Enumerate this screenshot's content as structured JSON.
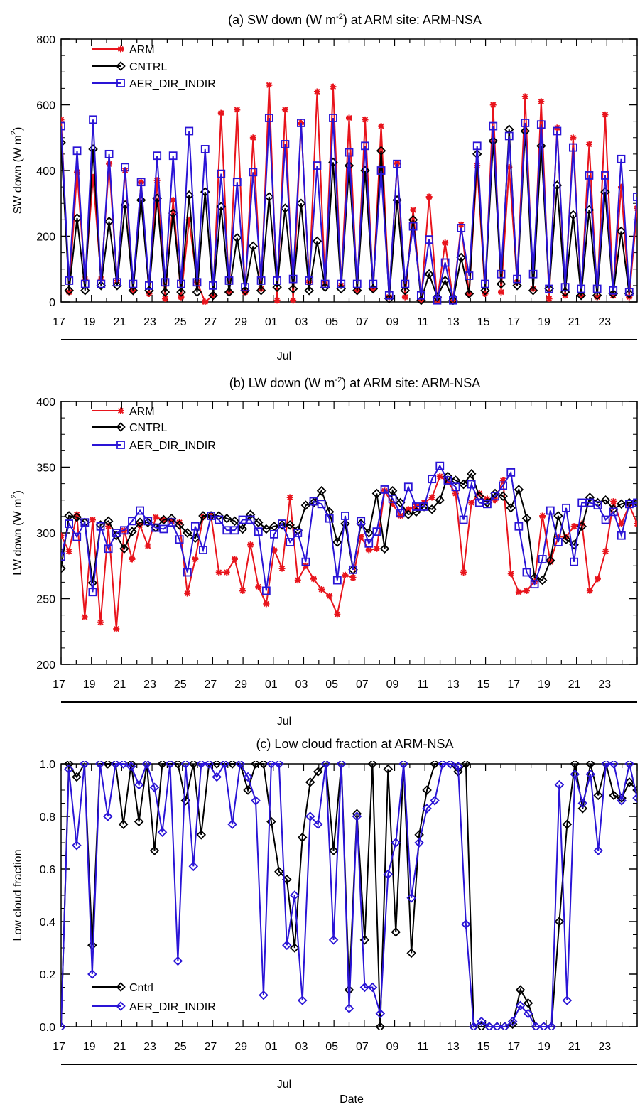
{
  "figure": {
    "month_label": "Jul",
    "date_label": "Date",
    "x_tick_labels": [
      "17",
      "19",
      "21",
      "23",
      "25",
      "27",
      "29",
      "01",
      "03",
      "05",
      "07",
      "09",
      "11",
      "13",
      "15",
      "17",
      "19",
      "21",
      "23"
    ]
  },
  "colors": {
    "ARM": "#e8141c",
    "CNTRL": "#000000",
    "AER": "#2a14d6"
  },
  "chart_data": [
    {
      "type": "line",
      "panel": "a",
      "title_parts": [
        "(a) SW down (W m",
        "-2",
        ") at ARM site: ARM-NSA"
      ],
      "ylabel_parts": [
        "SW down (W m",
        "2",
        ")"
      ],
      "ylim": [
        0,
        800
      ],
      "yticks": [
        0,
        200,
        400,
        600,
        800
      ],
      "xlim": [
        0,
        76
      ],
      "legend": "top-left",
      "series": [
        {
          "name": "ARM",
          "marker": "star",
          "color_key": "ARM",
          "values": [
            555,
            30,
            395,
            70,
            380,
            70,
            420,
            65,
            400,
            35,
            365,
            25,
            370,
            10,
            310,
            15,
            250,
            60,
            0,
            20,
            575,
            30,
            585,
            30,
            500,
            40,
            660,
            5,
            585,
            5,
            545,
            60,
            640,
            55,
            655,
            50,
            560,
            35,
            555,
            40,
            535,
            15,
            420,
            15,
            280,
            5,
            320,
            5,
            180,
            5,
            235,
            25,
            415,
            25,
            600,
            30,
            410,
            60,
            625,
            40,
            610,
            10,
            530,
            20,
            500,
            20,
            480,
            15,
            570,
            20,
            350,
            15,
            285
          ]
        },
        {
          "name": "CNTRL",
          "marker": "diamond",
          "color_key": "CNTRL",
          "values": [
            485,
            35,
            255,
            35,
            465,
            50,
            245,
            50,
            295,
            35,
            310,
            35,
            315,
            30,
            270,
            30,
            325,
            30,
            335,
            20,
            290,
            30,
            195,
            35,
            170,
            35,
            320,
            45,
            285,
            40,
            300,
            35,
            185,
            45,
            425,
            40,
            415,
            35,
            400,
            40,
            460,
            10,
            310,
            35,
            250,
            5,
            85,
            15,
            65,
            5,
            135,
            25,
            450,
            35,
            490,
            55,
            525,
            50,
            520,
            35,
            475,
            40,
            355,
            30,
            265,
            20,
            280,
            20,
            335,
            25,
            215,
            25
          ]
        },
        {
          "name": "AER_DIR_INDIR",
          "marker": "square",
          "color_key": "AER",
          "values": [
            535,
            65,
            460,
            55,
            555,
            55,
            450,
            60,
            410,
            55,
            365,
            50,
            445,
            60,
            445,
            55,
            520,
            60,
            465,
            50,
            390,
            65,
            365,
            45,
            395,
            65,
            560,
            65,
            480,
            70,
            545,
            65,
            415,
            55,
            560,
            55,
            455,
            55,
            475,
            55,
            400,
            20,
            420,
            55,
            230,
            20,
            190,
            5,
            120,
            5,
            225,
            80,
            475,
            55,
            535,
            85,
            505,
            70,
            545,
            85,
            540,
            40,
            520,
            45,
            470,
            40,
            385,
            40,
            385,
            35,
            435,
            30,
            320,
            25
          ]
        }
      ]
    },
    {
      "type": "line",
      "panel": "b",
      "title_parts": [
        "(b) LW down (W m",
        "-2",
        ") at ARM site: ARM-NSA"
      ],
      "ylabel_parts": [
        "LW down (W m",
        "2",
        ")"
      ],
      "ylim": [
        200,
        400
      ],
      "yticks": [
        200,
        250,
        300,
        350,
        400
      ],
      "xlim": [
        0,
        76
      ],
      "legend": "top-left",
      "series": [
        {
          "name": "ARM",
          "marker": "star",
          "color_key": "ARM",
          "values": [
            298,
            286,
            314,
            236,
            310,
            232,
            305,
            227,
            302,
            280,
            306,
            290,
            312,
            310,
            309,
            308,
            254,
            280,
            312,
            313,
            270,
            270,
            280,
            256,
            291,
            259,
            246,
            287,
            273,
            327,
            264,
            275,
            265,
            257,
            252,
            238,
            268,
            266,
            297,
            287,
            288,
            332,
            322,
            313,
            318,
            320,
            323,
            327,
            343,
            339,
            330,
            270,
            323,
            330,
            326,
            325,
            340,
            269,
            255,
            256,
            263,
            313,
            278,
            297,
            297,
            305,
            307,
            256,
            265,
            286,
            324,
            307,
            321,
            307
          ]
        },
        {
          "name": "CNTRL",
          "marker": "diamond",
          "color_key": "CNTRL",
          "values": [
            273,
            313,
            312,
            308,
            262,
            306,
            309,
            298,
            288,
            301,
            308,
            308,
            304,
            310,
            311,
            306,
            300,
            296,
            313,
            313,
            313,
            311,
            309,
            303,
            314,
            308,
            303,
            305,
            306,
            306,
            302,
            321,
            323,
            332,
            316,
            293,
            307,
            272,
            307,
            300,
            330,
            288,
            332,
            323,
            314,
            316,
            320,
            318,
            325,
            343,
            340,
            337,
            345,
            328,
            323,
            330,
            328,
            319,
            333,
            311,
            266,
            264,
            279,
            313,
            295,
            291,
            305,
            327,
            323,
            325,
            318,
            322,
            323,
            323
          ]
        },
        {
          "name": "AER_DIR_INDIR",
          "marker": "square",
          "color_key": "AER",
          "values": [
            282,
            307,
            297,
            308,
            255,
            305,
            288,
            300,
            302,
            309,
            317,
            309,
            304,
            303,
            308,
            295,
            270,
            305,
            287,
            313,
            310,
            302,
            302,
            310,
            310,
            301,
            256,
            299,
            307,
            293,
            300,
            278,
            324,
            322,
            311,
            264,
            313,
            272,
            309,
            292,
            301,
            333,
            326,
            315,
            335,
            320,
            320,
            341,
            351,
            340,
            335,
            310,
            337,
            323,
            322,
            328,
            336,
            346,
            305,
            270,
            261,
            280,
            317,
            293,
            319,
            278,
            323,
            323,
            321,
            310,
            316,
            298,
            322,
            323
          ]
        }
      ]
    },
    {
      "type": "line",
      "panel": "c",
      "title_parts": [
        "(c) Low cloud fraction at ARM-NSA",
        "",
        ""
      ],
      "ylabel_parts": [
        "Low cloud fraction",
        "",
        ""
      ],
      "ylim": [
        0,
        1
      ],
      "yticks": [
        0.0,
        0.2,
        0.4,
        0.6,
        0.8,
        1.0
      ],
      "xlim": [
        0,
        76
      ],
      "legend": "bottom-left",
      "series": [
        {
          "name": "Cntrl",
          "marker": "diamond",
          "color_key": "CNTRL",
          "values": [
            0.0,
            1.0,
            0.95,
            1.0,
            0.31,
            1.0,
            1.0,
            1.0,
            0.77,
            1.0,
            0.78,
            1.0,
            0.67,
            1.0,
            1.0,
            1.0,
            0.86,
            1.0,
            0.73,
            1.0,
            1.0,
            1.0,
            1.0,
            1.0,
            0.9,
            1.0,
            1.0,
            0.78,
            0.59,
            0.56,
            0.3,
            0.72,
            0.93,
            0.97,
            1.0,
            0.67,
            1.0,
            0.14,
            0.81,
            0.33,
            1.0,
            0.0,
            0.98,
            0.36,
            1.0,
            0.28,
            0.73,
            0.9,
            1.0,
            1.0,
            1.0,
            0.97,
            1.0,
            0.0,
            0.0,
            0.0,
            0.0,
            0.0,
            0.01,
            0.14,
            0.09,
            0.0,
            0.0,
            0.0,
            0.4,
            0.77,
            1.0,
            0.83,
            1.0,
            0.88,
            1.0,
            0.88,
            0.87,
            0.93,
            0.9
          ]
        },
        {
          "name": "AER_DIR_INDIR",
          "marker": "diamond",
          "color_key": "AER",
          "values": [
            0.0,
            0.98,
            0.69,
            1.0,
            0.2,
            1.0,
            0.8,
            1.0,
            1.0,
            0.99,
            0.92,
            1.0,
            0.91,
            0.74,
            1.0,
            0.25,
            1.0,
            0.61,
            1.0,
            1.0,
            0.95,
            1.0,
            0.77,
            1.0,
            0.95,
            0.86,
            0.12,
            1.0,
            1.0,
            0.31,
            0.5,
            0.1,
            0.8,
            0.77,
            1.0,
            0.33,
            1.0,
            0.07,
            0.8,
            0.15,
            0.15,
            0.05,
            0.58,
            0.7,
            1.0,
            0.49,
            0.7,
            0.83,
            0.86,
            1.0,
            1.0,
            0.99,
            0.39,
            0.0,
            0.02,
            0.0,
            0.0,
            0.0,
            0.02,
            0.08,
            0.05,
            0.0,
            0.0,
            0.0,
            0.92,
            0.1,
            0.96,
            0.85,
            0.96,
            0.67,
            1.0,
            1.0,
            0.86,
            1.0,
            0.87
          ]
        }
      ]
    }
  ]
}
